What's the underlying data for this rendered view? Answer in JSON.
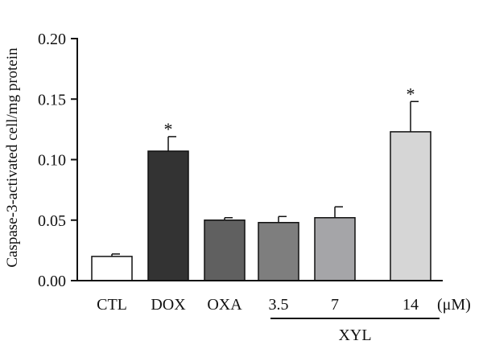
{
  "chart_data": {
    "type": "bar",
    "title": "",
    "xlabel": "",
    "ylabel": "Caspase-3-activated cell/mg protein",
    "ylim": [
      0,
      0.2
    ],
    "yticks": [
      "0.00",
      "0.05",
      "0.10",
      "0.15",
      "0.20"
    ],
    "categories": [
      "CTL",
      "DOX",
      "OXA",
      "3.5",
      "7",
      "14"
    ],
    "values": [
      0.02,
      0.107,
      0.05,
      0.048,
      0.052,
      0.123
    ],
    "errors": [
      0.002,
      0.012,
      0.002,
      0.005,
      0.009,
      0.025
    ],
    "significance": [
      "",
      "*",
      "",
      "",
      "",
      "*"
    ],
    "bar_colors": [
      "#ffffff",
      "#333333",
      "#606060",
      "#7e7e7e",
      "#a5a5a8",
      "#d6d6d6"
    ],
    "unit_label": "(μM)",
    "group_label": "XYL",
    "group_members": [
      "3.5",
      "7",
      "14"
    ],
    "grid": false,
    "legend": "none"
  }
}
